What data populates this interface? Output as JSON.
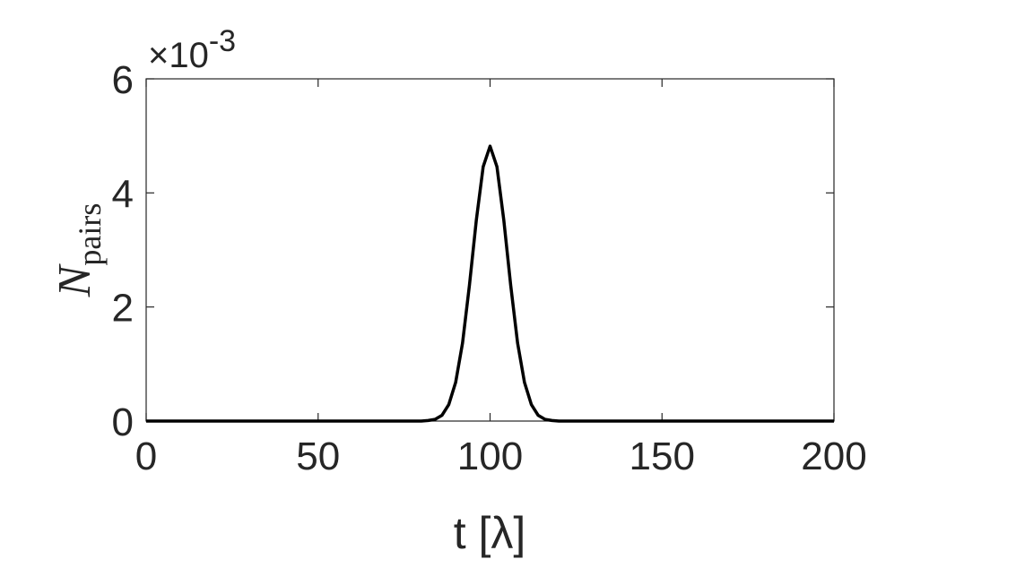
{
  "chart_data": {
    "type": "line",
    "x_label": "t [λ]",
    "y_label": "N",
    "y_label_subscript": "pairs",
    "y_exponent_base": "×10",
    "y_exponent": "-3",
    "x": [
      0,
      50,
      80,
      82,
      84,
      86,
      88,
      90,
      92,
      94,
      96,
      98,
      100,
      102,
      104,
      106,
      108,
      110,
      112,
      114,
      116,
      118,
      120,
      150,
      200
    ],
    "series": [
      {
        "color": "#000000",
        "values": [
          0,
          0,
          0,
          0.01,
          0.03,
          0.1,
          0.29,
          0.68,
          1.37,
          2.38,
          3.52,
          4.46,
          4.82,
          4.46,
          3.52,
          2.38,
          1.37,
          0.68,
          0.29,
          0.1,
          0.03,
          0.01,
          0,
          0,
          0
        ]
      }
    ],
    "xlim": [
      0,
      200
    ],
    "xticks": [
      0,
      50,
      100,
      150,
      200
    ],
    "ylim": [
      0,
      6
    ],
    "yticks": [
      0,
      2,
      4,
      6
    ],
    "grid": false
  }
}
